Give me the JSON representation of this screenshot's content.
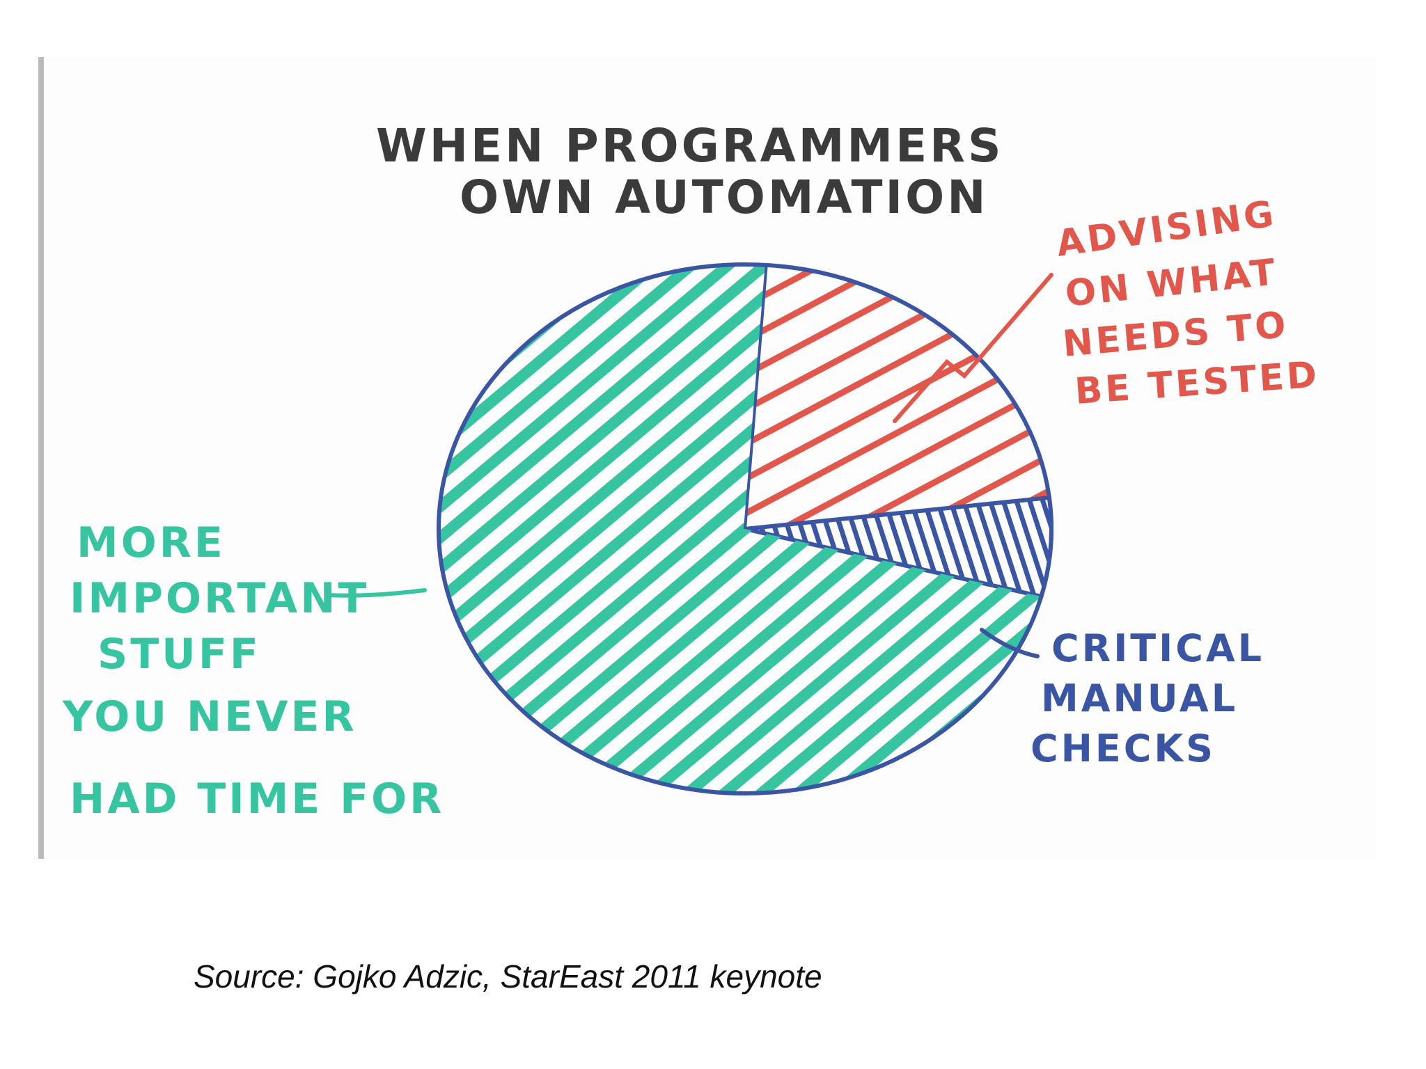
{
  "chart_data": {
    "type": "pie",
    "title_lines": [
      "WHEN PROGRAMMERS",
      "OWN AUTOMATION"
    ],
    "slices": [
      {
        "label_lines": [
          "ADVISING",
          "ON WHAT",
          "NEEDS TO",
          "BE TESTED"
        ],
        "value": 22,
        "color": "#e2574c"
      },
      {
        "label_lines": [
          "CRITICAL",
          "MANUAL",
          "CHECKS"
        ],
        "value": 6,
        "color": "#3a55a4"
      },
      {
        "label_lines": [
          "MORE",
          "IMPORTANT",
          "STUFF",
          "YOU NEVER",
          "HAD TIME FOR"
        ],
        "value": 72,
        "color": "#37c4a0"
      }
    ],
    "outline_color": "#3a55a4",
    "title_color": "#3b3b3b"
  },
  "source": "Source: Gojko Adzic, StarEast 2011 keynote"
}
